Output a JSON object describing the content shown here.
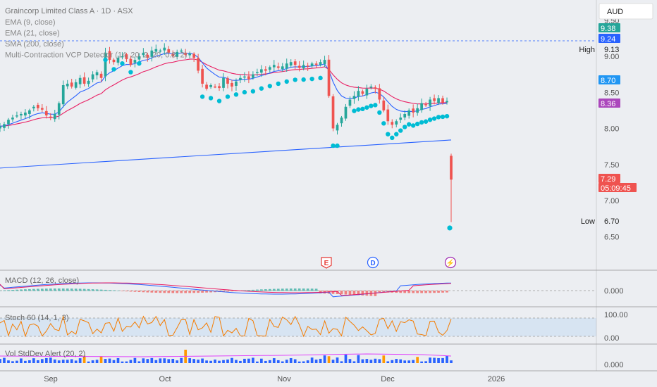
{
  "header": {
    "title": "Graincorp Limited Class A · 1D · ASX",
    "indicators": [
      "EMA (9, close)",
      "EMA (21, close)",
      "SMA (200, close)",
      "Multi-Contraction VCP Detector (14, 20, 2, 20, 0.8, 2)"
    ]
  },
  "currency": "AUD",
  "price_axis": {
    "ticks": [
      "9.50",
      "9.00",
      "8.50",
      "8.00",
      "7.50",
      "7.00",
      "6.50"
    ],
    "badges": [
      {
        "text": "9.38",
        "color": "#26a69a"
      },
      {
        "text": "9.24",
        "color": "#2962ff"
      },
      {
        "text": "8.70",
        "color": "#2196f3"
      },
      {
        "text": "8.36",
        "color": "#ab47bc"
      },
      {
        "text": "7.29",
        "color": "#ef5350"
      },
      {
        "text": "05:09:45",
        "color": "#ef5350"
      }
    ],
    "high_label": "High",
    "high_value": "9.13",
    "low_label": "Low",
    "low_value": "6.70"
  },
  "events": [
    {
      "letter": "E",
      "color": "#e53935"
    },
    {
      "letter": "D",
      "color": "#2962ff"
    },
    {
      "letter": "⚡",
      "color": "#9c27b0"
    }
  ],
  "panels": [
    {
      "label": "MACD (12, 26, close)",
      "ticks": [
        "0.000"
      ]
    },
    {
      "label": "Stoch 60 (14, 1, 3)",
      "ticks": [
        "100.00",
        "0.00"
      ]
    },
    {
      "label": "Vol StdDev Alert (20, 2)",
      "ticks": [
        "0.000"
      ]
    }
  ],
  "time_axis": [
    "Sep",
    "Oct",
    "Nov",
    "Dec",
    "2026"
  ],
  "chart_data": {
    "type": "candlestick",
    "colors": {
      "up": "#26a69a",
      "down": "#ef5350",
      "ema9": "#2962ff",
      "ema21": "#e91e63",
      "sma200": "#2962ff",
      "vcp_dot": "#00bcd4"
    },
    "ohlc_close": [
      8.03,
      8.06,
      8.12,
      8.15,
      8.18,
      8.2,
      8.22,
      8.25,
      8.3,
      8.28,
      8.26,
      8.18,
      8.15,
      8.2,
      8.35,
      8.6,
      8.62,
      8.58,
      8.64,
      8.7,
      8.62,
      8.66,
      8.75,
      8.78,
      8.7,
      9.05,
      8.95,
      8.92,
      8.98,
      9.0,
      8.96,
      8.88,
      8.95,
      9.0,
      9.05,
      8.98,
      9.08,
      9.1,
      9.08,
      9.12,
      9.05,
      9.0,
      9.06,
      9.08,
      9.02,
      9.04,
      8.98,
      8.8,
      8.62,
      8.55,
      8.6,
      8.58,
      8.56,
      8.7,
      8.62,
      8.58,
      8.65,
      8.7,
      8.72,
      8.68,
      8.75,
      8.78,
      8.82,
      8.8,
      8.85,
      8.88,
      8.84,
      8.86,
      8.9,
      8.92,
      8.88,
      8.84,
      8.88,
      8.86,
      8.9,
      8.88,
      8.92,
      8.95,
      8.45,
      8.0,
      8.05,
      8.15,
      8.3,
      8.4,
      8.45,
      8.52,
      8.48,
      8.55,
      8.58,
      8.55,
      8.4,
      8.25,
      8.1,
      8.05,
      8.1,
      8.15,
      8.2,
      8.25,
      8.22,
      8.28,
      8.35,
      8.32,
      8.4,
      8.38,
      8.42,
      8.36,
      8.38,
      7.29
    ]
  }
}
